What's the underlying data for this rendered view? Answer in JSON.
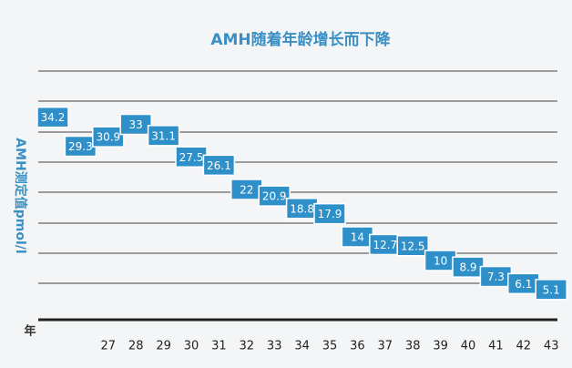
{
  "chart_data": {
    "type": "bar-label",
    "title": "AMH随着年龄增长而下降",
    "y_label": "AMH测定值pmol/l",
    "x_label": "年",
    "categories": [
      null,
      null,
      "27",
      "28",
      "29",
      "30",
      "31",
      "32",
      "33",
      "34",
      "35",
      "36",
      "37",
      "38",
      "39",
      "40",
      "41",
      "42",
      "43"
    ],
    "values": [
      34.2,
      29.3,
      30.9,
      33,
      31.1,
      27.5,
      26.1,
      22,
      20.9,
      18.8,
      17.9,
      14,
      12.7,
      12.5,
      10,
      8.9,
      7.3,
      6.1,
      5.1
    ],
    "color": "#2f8fc8",
    "ylim": [
      0,
      42
    ]
  }
}
